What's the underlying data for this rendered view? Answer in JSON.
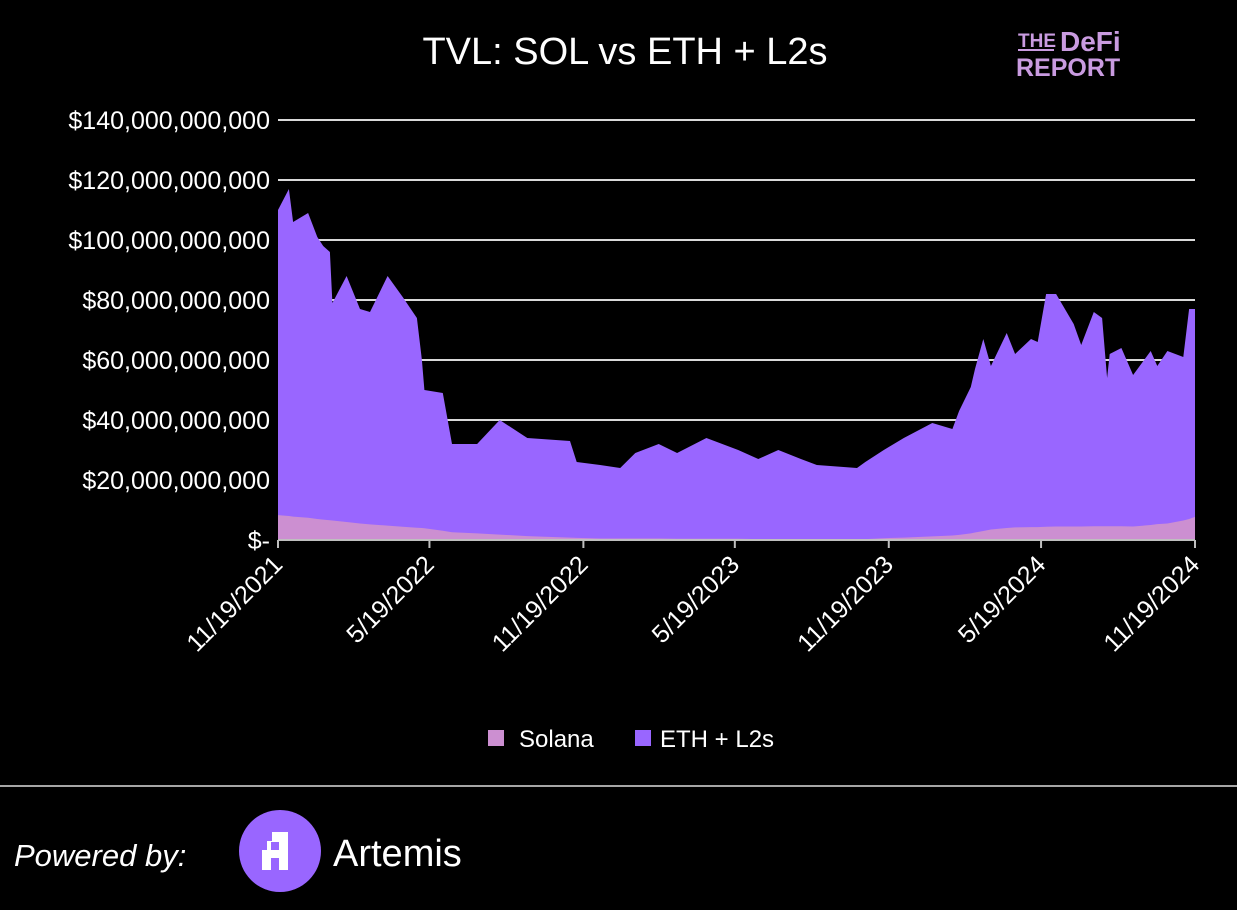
{
  "logo": {
    "line1_small": "THE",
    "line1_big": "DeFi",
    "line2": "REPORT"
  },
  "footer": {
    "powered_by": "Powered by:",
    "brand": "Artemis",
    "brand_color": "#9966ff"
  },
  "chart_data": {
    "type": "area",
    "stacked": true,
    "title": "TVL: SOL vs ETH + L2s",
    "xlabel": "",
    "ylabel": "",
    "ylim": [
      0,
      140000000000.0
    ],
    "xlim": [
      "11/19/2021",
      "11/19/2024"
    ],
    "y_ticks": [
      0,
      20000000000.0,
      40000000000.0,
      60000000000.0,
      80000000000.0,
      100000000000.0,
      120000000000.0,
      140000000000.0
    ],
    "y_tick_labels": [
      "$-",
      "$20,000,000,000",
      "$40,000,000,000",
      "$60,000,000,000",
      "$80,000,000,000",
      "$100,000,000,000",
      "$120,000,000,000",
      "$140,000,000,000"
    ],
    "x_tick_labels": [
      "11/19/2021",
      "5/19/2022",
      "11/19/2022",
      "5/19/2023",
      "11/19/2023",
      "5/19/2024",
      "11/19/2024"
    ],
    "grid": true,
    "legend_position": "bottom",
    "x": [
      "11/19/2021",
      "12/2/2021",
      "12/7/2021",
      "12/25/2021",
      "1/5/2022",
      "1/12/2022",
      "1/20/2022",
      "1/23/2022",
      "2/9/2022",
      "2/25/2022",
      "3/9/2022",
      "3/30/2022",
      "4/17/2022",
      "5/4/2022",
      "5/10/2022",
      "5/13/2022",
      "6/4/2022",
      "6/15/2022",
      "7/15/2022",
      "8/11/2022",
      "9/13/2022",
      "11/3/2022",
      "11/11/2022",
      "12/9/2022",
      "1/2/2023",
      "1/20/2023",
      "2/17/2023",
      "3/11/2023",
      "4/15/2023",
      "5/23/2023",
      "6/16/2023",
      "7/10/2023",
      "8/6/2023",
      "8/25/2023",
      "10/12/2023",
      "10/22/2023",
      "11/13/2023",
      "12/7/2023",
      "1/10/2024",
      "2/3/2024",
      "2/11/2024",
      "2/25/2024",
      "3/1/2024",
      "3/11/2024",
      "3/20/2024",
      "4/8/2024",
      "4/18/2024",
      "5/7/2024",
      "5/15/2024",
      "5/25/2024",
      "6/6/2024",
      "6/27/2024",
      "7/6/2024",
      "7/21/2024",
      "7/31/2024",
      "8/6/2024",
      "8/9/2024",
      "8/23/2024",
      "9/6/2024",
      "9/27/2024",
      "10/5/2024",
      "10/17/2024",
      "11/5/2024",
      "11/12/2024",
      "11/19/2024"
    ],
    "series": [
      {
        "name": "Solana",
        "color": "#cc8fd1",
        "values": [
          8300000000.0,
          8000000000.0,
          7800000000.0,
          7400000000.0,
          7000000000.0,
          6800000000.0,
          6600000000.0,
          6500000000.0,
          6000000000.0,
          5500000000.0,
          5200000000.0,
          4800000000.0,
          4400000000.0,
          4100000000.0,
          4000000000.0,
          3900000000.0,
          3100000000.0,
          2600000000.0,
          2200000000.0,
          1800000000.0,
          1300000000.0,
          800000000.0,
          700000000.0,
          500000000.0,
          500000000.0,
          500000000.0,
          500000000.0,
          400000000.0,
          400000000.0,
          400000000.0,
          300000000.0,
          300000000.0,
          300000000.0,
          300000000.0,
          300000000.0,
          300000000.0,
          600000000.0,
          800000000.0,
          1200000000.0,
          1500000000.0,
          1700000000.0,
          2200000000.0,
          2500000000.0,
          3000000000.0,
          3500000000.0,
          4000000000.0,
          4200000000.0,
          4300000000.0,
          4300000000.0,
          4400000000.0,
          4500000000.0,
          4500000000.0,
          4500000000.0,
          4600000000.0,
          4600000000.0,
          4600000000.0,
          4600000000.0,
          4600000000.0,
          4500000000.0,
          5000000000.0,
          5300000000.0,
          5500000000.0,
          6500000000.0,
          7000000000.0,
          7700000000.0
        ]
      },
      {
        "name": "ETH + L2s",
        "color": "#9966ff",
        "values": [
          101700000000.0,
          109000000000.0,
          98200000000.0,
          101600000000.0,
          94000000000.0,
          91200000000.0,
          89400000000.0,
          72500000000.0,
          82000000000.0,
          71500000000.0,
          70800000000.0,
          83200000000.0,
          76600000000.0,
          69900000000.0,
          56000000000.0,
          46100000000.0,
          45900000000.0,
          29400000000.0,
          29800000000.0,
          38200000000.0,
          32700000000.0,
          32200000000.0,
          25300000000.0,
          24500000000.0,
          23500000000.0,
          28500000000.0,
          31500000000.0,
          28600000000.0,
          33600000000.0,
          29600000000.0,
          26700000000.0,
          29700000000.0,
          26700000000.0,
          24700000000.0,
          23700000000.0,
          25700000000.0,
          29400000000.0,
          33200000000.0,
          37800000000.0,
          35500000000.0,
          41300000000.0,
          48800000000.0,
          54500000000.0,
          64000000000.0,
          54500000000.0,
          65000000000.0,
          57800000000.0,
          62700000000.0,
          61700000000.0,
          77600000000.0,
          77500000000.0,
          67500000000.0,
          60500000000.0,
          71400000000.0,
          69400000000.0,
          49400000000.0,
          57400000000.0,
          59400000000.0,
          50500000000.0,
          58000000000.0,
          52700000000.0,
          57500000000.0,
          54500000000.0,
          70000000000.0,
          69300000000.0
        ]
      }
    ]
  }
}
